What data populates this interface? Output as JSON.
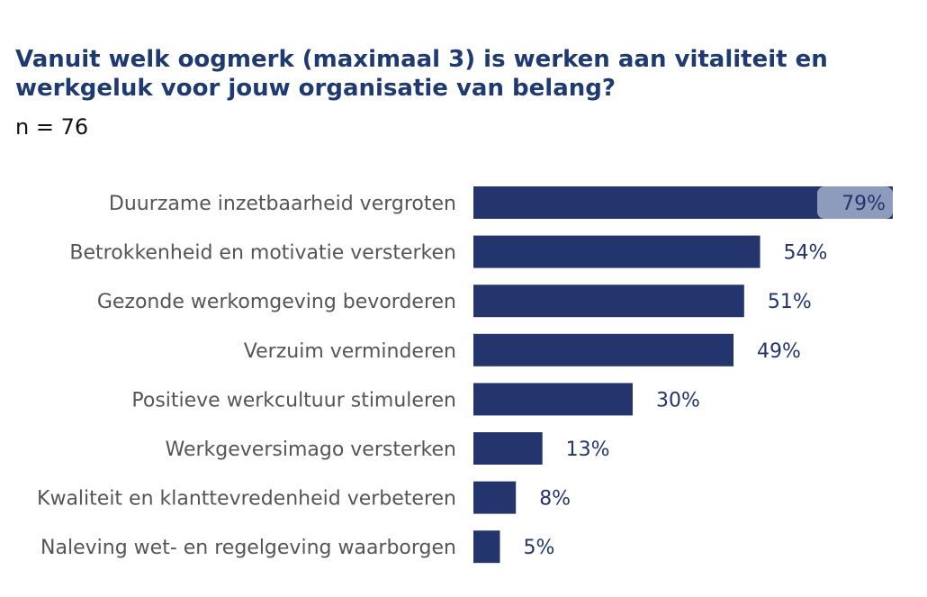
{
  "title": "Vanuit welk oogmerk (maximaal 3) is werken aan vitaliteit en werkgeluk voor jouw organisatie van belang?",
  "subtitle": "n = 76",
  "colors": {
    "bar": "#24356e",
    "value_text": "#24356e",
    "inside_label_bg": "#8f9bbd",
    "inside_label_text": "#24356e",
    "category_text": "#555555"
  },
  "chart_data": {
    "type": "bar",
    "orientation": "horizontal",
    "title": "Vanuit welk oogmerk (maximaal 3) is werken aan vitaliteit en werkgeluk voor jouw organisatie van belang?",
    "subtitle": "n = 76",
    "categories": [
      "Duurzame inzetbaarheid vergroten",
      "Betrokkenheid en motivatie versterken",
      "Gezonde werkomgeving bevorderen",
      "Verzuim verminderen",
      "Positieve werkcultuur stimuleren",
      "Werkgeversimago versterken",
      "Kwaliteit en klanttevredenheid verbeteren",
      "Naleving wet- en regelgeving waarborgen"
    ],
    "values": [
      79,
      54,
      51,
      49,
      30,
      13,
      8,
      5
    ],
    "value_labels": [
      "79%",
      "54%",
      "51%",
      "49%",
      "30%",
      "13%",
      "8%",
      "5%"
    ],
    "unit": "%",
    "xlim": [
      0,
      79
    ],
    "grid": false,
    "legend": "none"
  }
}
